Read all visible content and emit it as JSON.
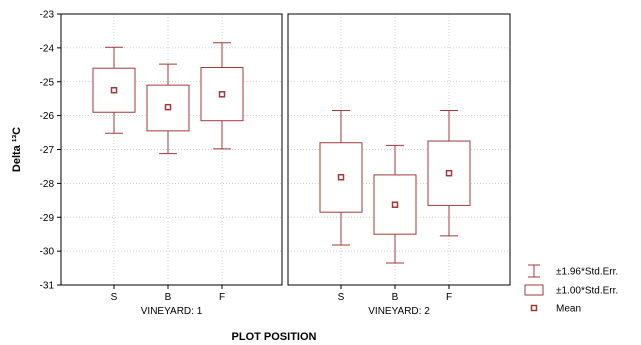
{
  "chart_data": {
    "type": "box",
    "xlabel": "PLOT POSITION",
    "ylabel": "Delta ¹³C",
    "ylim": [
      -31,
      -23
    ],
    "yticks": [
      -23,
      -24,
      -25,
      -26,
      -27,
      -28,
      -29,
      -30,
      -31
    ],
    "grid": true,
    "legend_position": "bottom-right",
    "colors": {
      "box": "#a03a3a",
      "grid": "#bfbfbf",
      "frame": "#000000"
    },
    "legend": [
      {
        "key": "whisker",
        "label": "±1.96*Std.Err."
      },
      {
        "key": "box",
        "label": "±1.00*Std.Err."
      },
      {
        "key": "mean",
        "label": "Mean"
      }
    ],
    "panels": [
      {
        "label": "VINEYARD: 1",
        "categories": [
          "S",
          "B",
          "F"
        ],
        "mean": [
          -25.25,
          -25.75,
          -25.37
        ],
        "box_low": [
          -25.9,
          -26.45,
          -26.15
        ],
        "box_high": [
          -24.6,
          -25.1,
          -24.58
        ],
        "whisker_low": [
          -26.52,
          -27.12,
          -26.98
        ],
        "whisker_high": [
          -23.98,
          -24.48,
          -23.85
        ]
      },
      {
        "label": "VINEYARD: 2",
        "categories": [
          "S",
          "B",
          "F"
        ],
        "mean": [
          -27.82,
          -28.63,
          -27.7
        ],
        "box_low": [
          -28.85,
          -29.5,
          -28.65
        ],
        "box_high": [
          -26.8,
          -27.75,
          -26.75
        ],
        "whisker_low": [
          -29.82,
          -30.35,
          -29.55
        ],
        "whisker_high": [
          -25.85,
          -26.88,
          -25.85
        ]
      }
    ]
  }
}
